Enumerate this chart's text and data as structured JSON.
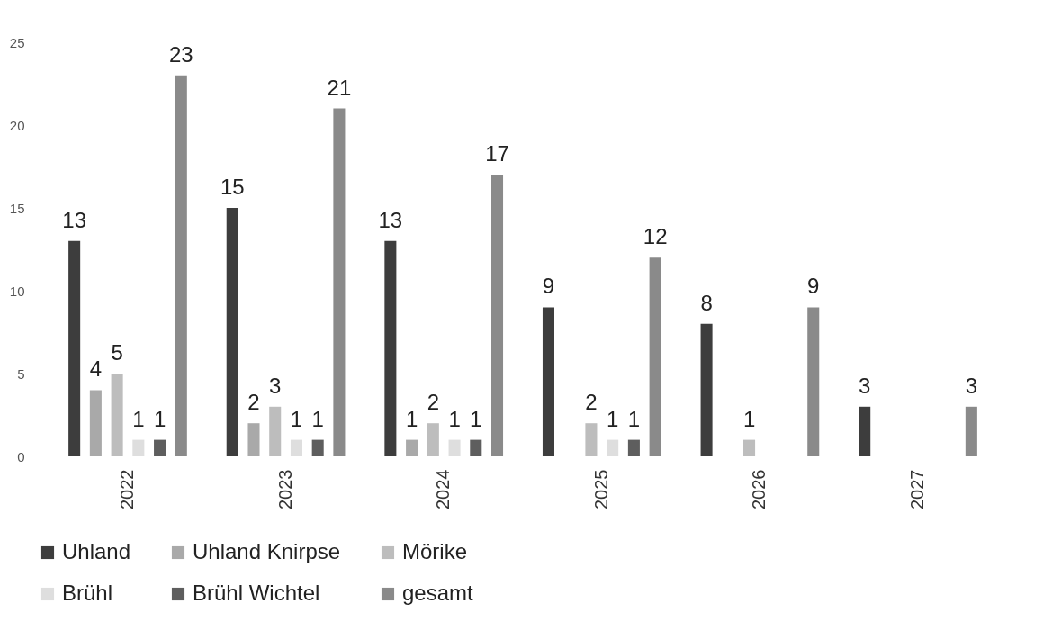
{
  "chart_data": {
    "type": "bar",
    "categories": [
      "2022",
      "2023",
      "2024",
      "2025",
      "2026",
      "2027"
    ],
    "series": [
      {
        "name": "Uhland",
        "color": "#3d3d3d",
        "values": [
          13,
          15,
          13,
          9,
          8,
          3
        ]
      },
      {
        "name": "Uhland Knirpse",
        "color": "#a9a9a9",
        "values": [
          4,
          2,
          1,
          null,
          null,
          null
        ]
      },
      {
        "name": "Mörike",
        "color": "#bdbdbd",
        "values": [
          5,
          3,
          2,
          2,
          1,
          null
        ]
      },
      {
        "name": "Brühl",
        "color": "#dedede",
        "values": [
          1,
          1,
          1,
          1,
          null,
          null
        ]
      },
      {
        "name": "Brühl Wichtel",
        "color": "#5e5e5e",
        "values": [
          1,
          1,
          1,
          1,
          null,
          null
        ]
      },
      {
        "name": "gesamt",
        "color": "#8a8a8a",
        "values": [
          23,
          21,
          17,
          12,
          9,
          3
        ]
      }
    ],
    "ylim": [
      0,
      25
    ],
    "yticks": [
      0,
      5,
      10,
      15,
      20,
      25
    ],
    "grid": false,
    "legend": "bottom",
    "data_labels": true
  }
}
